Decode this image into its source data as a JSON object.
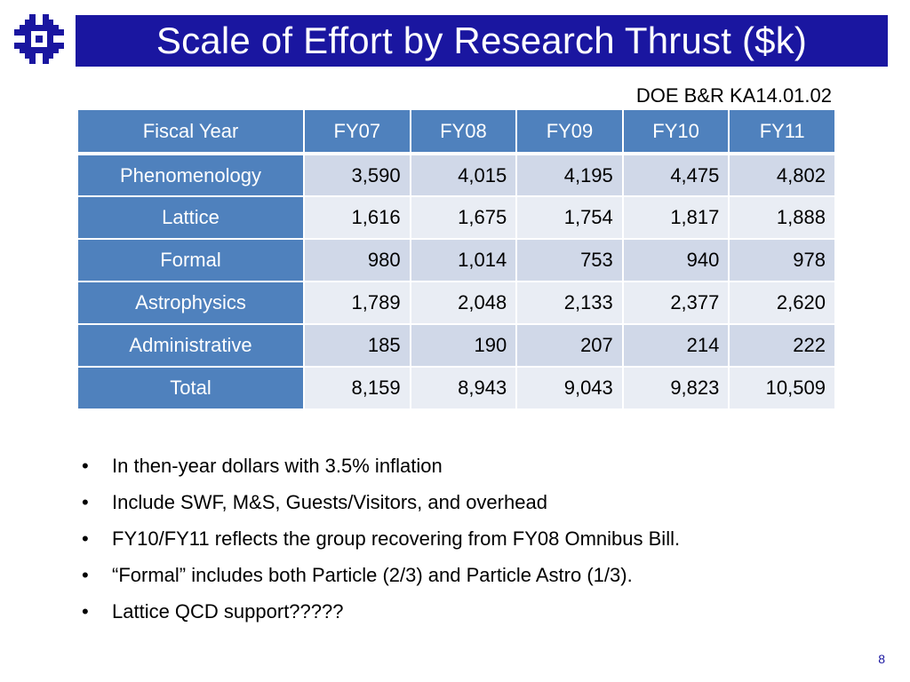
{
  "slide": {
    "title": "Scale of Effort by Research Thrust ($k)",
    "source_label": "DOE B&R KA14.01.02",
    "page_number": "8",
    "logo_icon": "fermilab-logo",
    "brand_color": "#1a16a0",
    "table_header_color": "#4f81bd"
  },
  "table": {
    "header": [
      "Fiscal Year",
      "FY07",
      "FY08",
      "FY09",
      "FY10",
      "FY11"
    ],
    "rows": [
      {
        "label": "Phenomenology",
        "values": [
          "3,590",
          "4,015",
          "4,195",
          "4,475",
          "4,802"
        ]
      },
      {
        "label": "Lattice",
        "values": [
          "1,616",
          "1,675",
          "1,754",
          "1,817",
          "1,888"
        ]
      },
      {
        "label": "Formal",
        "values": [
          "980",
          "1,014",
          "753",
          "940",
          "978"
        ]
      },
      {
        "label": "Astrophysics",
        "values": [
          "1,789",
          "2,048",
          "2,133",
          "2,377",
          "2,620"
        ]
      },
      {
        "label": "Administrative",
        "values": [
          "185",
          "190",
          "207",
          "214",
          "222"
        ]
      },
      {
        "label": "Total",
        "values": [
          "8,159",
          "8,943",
          "9,043",
          "9,823",
          "10,509"
        ]
      }
    ]
  },
  "bullets": {
    "marker": "•",
    "items": [
      "In then-year dollars with 3.5% inflation",
      "Include SWF, M&S, Guests/Visitors, and overhead",
      "FY10/FY11 reflects the group recovering from FY08 Omnibus Bill.",
      "“Formal” includes both Particle (2/3) and Particle Astro (1/3).",
      "Lattice QCD support?????"
    ]
  }
}
